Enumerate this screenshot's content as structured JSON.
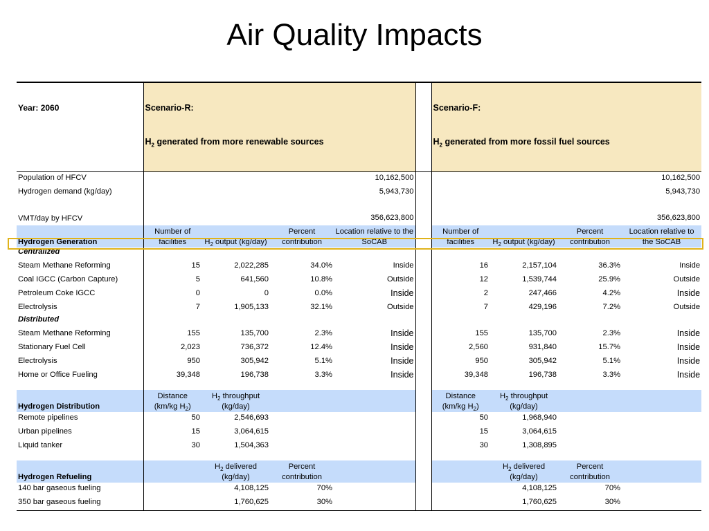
{
  "title": "Air Quality Impacts",
  "header": {
    "year": "Year: 2060",
    "scenario_r": {
      "name": "Scenario-R:",
      "desc_pre": "H",
      "desc_sub": "2",
      "desc_post": " generated from more renewable sources"
    },
    "scenario_f": {
      "name": "Scenario-F:",
      "desc_pre": "H",
      "desc_sub": "2",
      "desc_post": " generated from more fossil fuel sources"
    }
  },
  "summary": [
    {
      "label": "Population of HFCV",
      "r": "10,162,500",
      "f": "10,162,500"
    },
    {
      "label": "Hydrogen demand (kg/day)",
      "r": "5,943,730",
      "f": "5,943,730"
    },
    {
      "label": "VMT/day by HFCV",
      "r": "356,623,800",
      "f": "356,623,800"
    }
  ],
  "generation": {
    "label": "Hydrogen Generation",
    "col_facilities": "Number of facilities",
    "col_output_pre": "H",
    "col_output_sub": "2",
    "col_output_post": " output (kg/day)",
    "col_percent": "Percent contribution",
    "col_location": "Location relative to the SoCAB",
    "centralized_label": "Centralized",
    "distributed_label": "Distributed",
    "centralized": [
      {
        "label": "Steam Methane Reforming",
        "r": [
          "15",
          "2,022,285",
          "34.0%",
          "Inside"
        ],
        "f": [
          "16",
          "2,157,104",
          "36.3%",
          "Inside"
        ]
      },
      {
        "label": "Coal IGCC (Carbon Capture)",
        "r": [
          "5",
          "641,560",
          "10.8%",
          "Outside"
        ],
        "f": [
          "12",
          "1,539,744",
          "25.9%",
          "Outside"
        ]
      },
      {
        "label": "Petroleum Coke IGCC",
        "r": [
          "0",
          "0",
          "0.0%",
          "Inside"
        ],
        "f": [
          "2",
          "247,466",
          "4.2%",
          "Inside"
        ]
      },
      {
        "label": "Electrolysis",
        "r": [
          "7",
          "1,905,133",
          "32.1%",
          "Outside"
        ],
        "f": [
          "7",
          "429,196",
          "7.2%",
          "Outside"
        ]
      }
    ],
    "distributed": [
      {
        "label": "Steam Methane Reforming",
        "r": [
          "155",
          "135,700",
          "2.3%",
          "Inside"
        ],
        "f": [
          "155",
          "135,700",
          "2.3%",
          "Inside"
        ]
      },
      {
        "label": "Stationary Fuel Cell",
        "r": [
          "2,023",
          "736,372",
          "12.4%",
          "Inside"
        ],
        "f": [
          "2,560",
          "931,840",
          "15.7%",
          "Inside"
        ]
      },
      {
        "label": "Electrolysis",
        "r": [
          "950",
          "305,942",
          "5.1%",
          "Inside"
        ],
        "f": [
          "950",
          "305,942",
          "5.1%",
          "Inside"
        ]
      },
      {
        "label": "Home or Office Fueling",
        "r": [
          "39,348",
          "196,738",
          "3.3%",
          "Inside"
        ],
        "f": [
          "39,348",
          "196,738",
          "3.3%",
          "Inside"
        ]
      }
    ]
  },
  "distribution": {
    "label": "Hydrogen Distribution",
    "col_distance_pre": "Distance (km/kg H",
    "col_distance_sub": "2",
    "col_distance_post": ")",
    "col_throughput_pre": "H",
    "col_throughput_sub": "2",
    "col_throughput_post": " throughput (kg/day)",
    "rows": [
      {
        "label": "Remote pipelines",
        "r": [
          "50",
          "2,546,693"
        ],
        "f": [
          "50",
          "1,968,940"
        ]
      },
      {
        "label": "Urban pipelines",
        "r": [
          "15",
          "3,064,615"
        ],
        "f": [
          "15",
          "3,064,615"
        ]
      },
      {
        "label": "Liquid tanker",
        "r": [
          "30",
          "1,504,363"
        ],
        "f": [
          "30",
          "1,308,895"
        ]
      }
    ]
  },
  "refueling": {
    "label": "Hydrogen Refueling",
    "col_delivered_pre": "H",
    "col_delivered_sub": "2",
    "col_delivered_post": " delivered (kg/day)",
    "col_percent": "Percent contribution",
    "rows": [
      {
        "label": "140 bar gaseous fueling",
        "r": [
          "4,108,125",
          "70%"
        ],
        "f": [
          "4,108,125",
          "70%"
        ]
      },
      {
        "label": "350 bar gaseous fueling",
        "r": [
          "1,760,625",
          "30%"
        ],
        "f": [
          "1,760,625",
          "30%"
        ]
      }
    ]
  },
  "colors": {
    "header_tan": "#f7e8c0",
    "section_blue": "#c5dcfb",
    "highlight": "#e0b31a"
  }
}
